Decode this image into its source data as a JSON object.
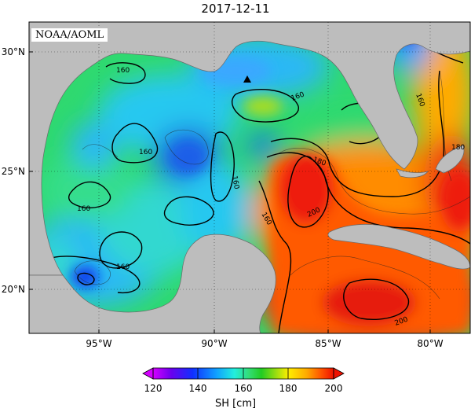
{
  "title": "2017-12-11",
  "credit": "NOAA/AOML",
  "lat_labels": [
    "30°N",
    "25°N",
    "20°N"
  ],
  "lon_labels": [
    "95°W",
    "90°W",
    "85°W",
    "80°W"
  ],
  "contour_labels": [
    "160",
    "160",
    "160",
    "160",
    "160",
    "160",
    "160",
    "160",
    "180",
    "180",
    "200",
    "200"
  ],
  "colorbar": {
    "ticks": [
      "120",
      "140",
      "160",
      "180",
      "200"
    ],
    "unit": "SH [cm]",
    "colors": [
      "#d400ff",
      "#5500ee",
      "#0a40ff",
      "#12aaff",
      "#22eedd",
      "#33dd77",
      "#22cc22",
      "#99dd11",
      "#ffee00",
      "#ffaa00",
      "#ff5500",
      "#ee1100"
    ]
  },
  "colors": {
    "land": "#bdbdbd",
    "warm": "#f03a10",
    "cool": "#27c9f0",
    "mid": "#2fd96f"
  },
  "marker": "triangle"
}
